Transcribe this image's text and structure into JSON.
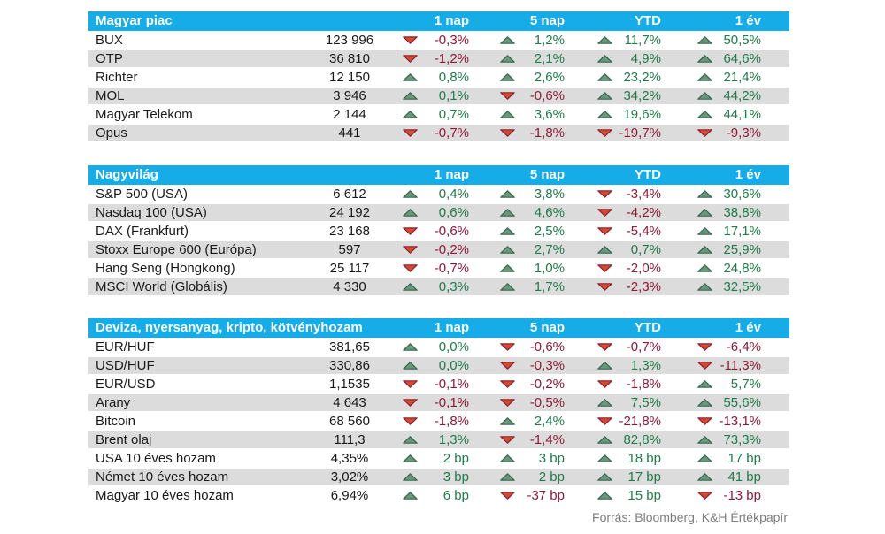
{
  "colors": {
    "header_bg": "#16ACE8",
    "header_text": "#FFFFFF",
    "stripe": "#DCDCDC",
    "text": "#1A1A1A",
    "positive_text": "#1F7C4B",
    "negative_text": "#8E1A38",
    "up_arrow_fill": "#67987D",
    "up_arrow_stroke": "#3A6550",
    "down_arrow_fill": "#D14B2E",
    "down_arrow_stroke": "#8E2132",
    "source_text": "#7D7D7D"
  },
  "chart_data": [
    {
      "type": "table",
      "title": "Magyar piac",
      "columns": [
        "1 nap",
        "5 nap",
        "YTD",
        "1 év"
      ],
      "rows": [
        {
          "name": "BUX",
          "value": "123 996",
          "changes": [
            {
              "dir": "down",
              "text": "-0,3%"
            },
            {
              "dir": "up",
              "text": "1,2%"
            },
            {
              "dir": "up",
              "text": "11,7%"
            },
            {
              "dir": "up",
              "text": "50,5%"
            }
          ]
        },
        {
          "name": "OTP",
          "value": "36 810",
          "changes": [
            {
              "dir": "down",
              "text": "-1,2%"
            },
            {
              "dir": "up",
              "text": "2,1%"
            },
            {
              "dir": "up",
              "text": "4,9%"
            },
            {
              "dir": "up",
              "text": "64,6%"
            }
          ]
        },
        {
          "name": "Richter",
          "value": "12 150",
          "changes": [
            {
              "dir": "up",
              "text": "0,8%"
            },
            {
              "dir": "up",
              "text": "2,6%"
            },
            {
              "dir": "up",
              "text": "23,2%"
            },
            {
              "dir": "up",
              "text": "21,4%"
            }
          ]
        },
        {
          "name": "MOL",
          "value": "3 946",
          "changes": [
            {
              "dir": "up",
              "text": "0,1%"
            },
            {
              "dir": "down",
              "text": "-0,6%"
            },
            {
              "dir": "up",
              "text": "34,2%"
            },
            {
              "dir": "up",
              "text": "44,2%"
            }
          ]
        },
        {
          "name": "Magyar Telekom",
          "value": "2 144",
          "changes": [
            {
              "dir": "up",
              "text": "0,7%"
            },
            {
              "dir": "up",
              "text": "3,6%"
            },
            {
              "dir": "up",
              "text": "19,6%"
            },
            {
              "dir": "up",
              "text": "44,1%"
            }
          ]
        },
        {
          "name": "Opus",
          "value": "441",
          "changes": [
            {
              "dir": "down",
              "text": "-0,7%"
            },
            {
              "dir": "down",
              "text": "-1,8%"
            },
            {
              "dir": "down",
              "text": "-19,7%"
            },
            {
              "dir": "down",
              "text": "-9,3%"
            }
          ]
        }
      ]
    },
    {
      "type": "table",
      "title": "Nagyvilág",
      "columns": [
        "1 nap",
        "5 nap",
        "YTD",
        "1 év"
      ],
      "rows": [
        {
          "name": "S&P 500 (USA)",
          "value": "6 612",
          "changes": [
            {
              "dir": "up",
              "text": "0,4%"
            },
            {
              "dir": "up",
              "text": "3,8%"
            },
            {
              "dir": "down",
              "text": "-3,4%"
            },
            {
              "dir": "up",
              "text": "30,6%"
            }
          ]
        },
        {
          "name": "Nasdaq 100 (USA)",
          "value": "24 192",
          "changes": [
            {
              "dir": "up",
              "text": "0,6%"
            },
            {
              "dir": "up",
              "text": "4,6%"
            },
            {
              "dir": "down",
              "text": "-4,2%"
            },
            {
              "dir": "up",
              "text": "38,8%"
            }
          ]
        },
        {
          "name": "DAX (Frankfurt)",
          "value": "23 168",
          "changes": [
            {
              "dir": "down",
              "text": "-0,6%"
            },
            {
              "dir": "up",
              "text": "2,5%"
            },
            {
              "dir": "down",
              "text": "-5,4%"
            },
            {
              "dir": "up",
              "text": "17,1%"
            }
          ]
        },
        {
          "name": "Stoxx Europe 600 (Európa)",
          "value": "597",
          "changes": [
            {
              "dir": "down",
              "text": "-0,2%"
            },
            {
              "dir": "up",
              "text": "2,7%"
            },
            {
              "dir": "up",
              "text": "0,7%"
            },
            {
              "dir": "up",
              "text": "25,9%"
            }
          ]
        },
        {
          "name": "Hang Seng (Hongkong)",
          "value": "25 117",
          "changes": [
            {
              "dir": "down",
              "text": "-0,7%"
            },
            {
              "dir": "up",
              "text": "1,0%"
            },
            {
              "dir": "down",
              "text": "-2,0%"
            },
            {
              "dir": "up",
              "text": "24,8%"
            }
          ]
        },
        {
          "name": "MSCI World (Globális)",
          "value": "4 330",
          "changes": [
            {
              "dir": "up",
              "text": "0,3%"
            },
            {
              "dir": "up",
              "text": "1,7%"
            },
            {
              "dir": "down",
              "text": "-2,3%"
            },
            {
              "dir": "up",
              "text": "32,5%"
            }
          ]
        }
      ]
    },
    {
      "type": "table",
      "title": "Deviza, nyersanyag, kripto, kötvényhozam",
      "columns": [
        "1 nap",
        "5 nap",
        "YTD",
        "1 év"
      ],
      "rows": [
        {
          "name": "EUR/HUF",
          "value": "381,65",
          "changes": [
            {
              "dir": "up",
              "text": "0,0%"
            },
            {
              "dir": "down",
              "text": "-0,6%"
            },
            {
              "dir": "down",
              "text": "-0,7%"
            },
            {
              "dir": "down",
              "text": "-6,4%"
            }
          ]
        },
        {
          "name": "USD/HUF",
          "value": "330,86",
          "changes": [
            {
              "dir": "up",
              "text": "0,0%"
            },
            {
              "dir": "down",
              "text": "-0,3%"
            },
            {
              "dir": "up",
              "text": "1,3%"
            },
            {
              "dir": "down",
              "text": "-11,3%"
            }
          ]
        },
        {
          "name": "EUR/USD",
          "value": "1,1535",
          "changes": [
            {
              "dir": "down",
              "text": "-0,1%"
            },
            {
              "dir": "down",
              "text": "-0,2%"
            },
            {
              "dir": "down",
              "text": "-1,8%"
            },
            {
              "dir": "up",
              "text": "5,7%"
            }
          ]
        },
        {
          "name": "Arany",
          "value": "4 643",
          "changes": [
            {
              "dir": "down",
              "text": "-0,1%"
            },
            {
              "dir": "down",
              "text": "-0,5%"
            },
            {
              "dir": "up",
              "text": "7,5%"
            },
            {
              "dir": "up",
              "text": "55,6%"
            }
          ]
        },
        {
          "name": "Bitcoin",
          "value": "68 560",
          "changes": [
            {
              "dir": "down",
              "text": "-1,8%"
            },
            {
              "dir": "up",
              "text": "2,4%"
            },
            {
              "dir": "down",
              "text": "-21,8%"
            },
            {
              "dir": "down",
              "text": "-13,1%"
            }
          ]
        },
        {
          "name": "Brent olaj",
          "value": "111,3",
          "changes": [
            {
              "dir": "up",
              "text": "1,3%"
            },
            {
              "dir": "down",
              "text": "-1,4%"
            },
            {
              "dir": "up",
              "text": "82,8%"
            },
            {
              "dir": "up",
              "text": "73,3%"
            }
          ]
        },
        {
          "name": "USA 10 éves hozam",
          "value": "4,35%",
          "changes": [
            {
              "dir": "up",
              "text": "2 bp"
            },
            {
              "dir": "up",
              "text": "3 bp"
            },
            {
              "dir": "up",
              "text": "18 bp"
            },
            {
              "dir": "up",
              "text": "17 bp"
            }
          ]
        },
        {
          "name": "Német 10 éves hozam",
          "value": "3,02%",
          "changes": [
            {
              "dir": "up",
              "text": "3 bp"
            },
            {
              "dir": "up",
              "text": "2 bp"
            },
            {
              "dir": "up",
              "text": "17 bp"
            },
            {
              "dir": "up",
              "text": "41 bp"
            }
          ]
        },
        {
          "name": "Magyar 10 éves hozam",
          "value": "6,94%",
          "changes": [
            {
              "dir": "up",
              "text": "6 bp"
            },
            {
              "dir": "down",
              "text": "-37 bp"
            },
            {
              "dir": "up",
              "text": "15 bp"
            },
            {
              "dir": "down",
              "text": "-13 bp"
            }
          ]
        }
      ]
    }
  ],
  "footer": {
    "source": "Forrás: Bloomberg, K&H Értékpapír"
  }
}
